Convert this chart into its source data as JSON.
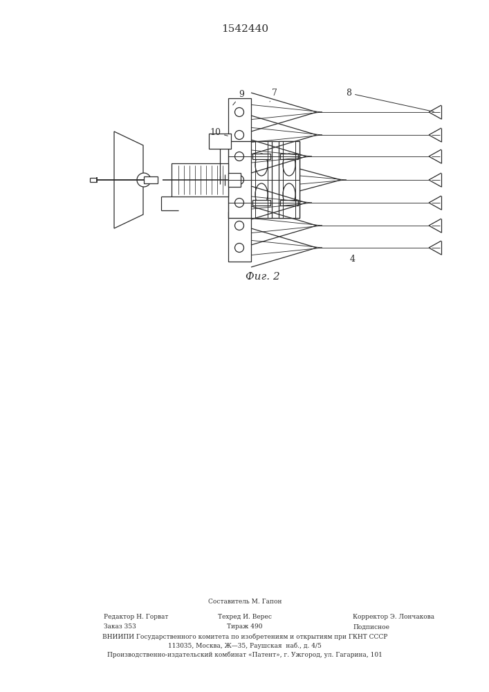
{
  "title": "1542440",
  "fig_label": "Фиг. 2",
  "bg_color": "#ffffff",
  "line_color": "#2a2a2a",
  "line_width": 0.9,
  "footer": {
    "col1": [
      "Редактор Н. Горват",
      "Заказ 353"
    ],
    "col2": [
      "Составитель М. Гапон",
      "Техред И. Верес",
      "Тираж 490"
    ],
    "col3": [
      "Корректор Э. Лончакова",
      "Подписное"
    ],
    "row3": "ВНИИПИ Государственного комитета по изобретениям и открытиям при ГКНТ СССР",
    "row4": "113035, Москва, Ж—35, Раушская  наб., д. 4/5",
    "row5": "Производственно-издательский комбинат «Патент», г. Ужгород, ул. Гагарина, 101"
  }
}
